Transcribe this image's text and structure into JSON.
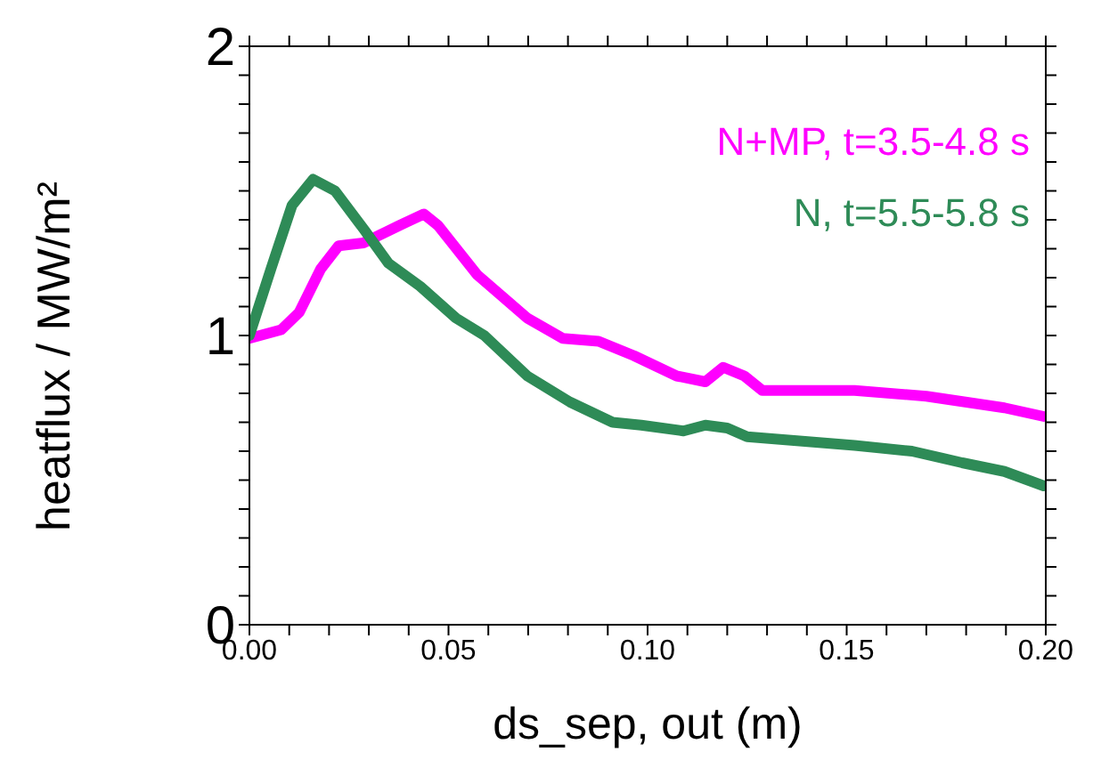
{
  "chart_data": {
    "type": "line",
    "xlabel": "ds_sep, out (m)",
    "ylabel": "heatflux / MW/m²",
    "xlim": [
      0,
      0.2
    ],
    "ylim": [
      0,
      2
    ],
    "xticks": [
      {
        "value": 0,
        "label": "0.00"
      },
      {
        "value": 0.01,
        "label": null
      },
      {
        "value": 0.02,
        "label": null
      },
      {
        "value": 0.03,
        "label": null
      },
      {
        "value": 0.04,
        "label": null
      },
      {
        "value": 0.05,
        "label": "0.05"
      },
      {
        "value": 0.06,
        "label": null
      },
      {
        "value": 0.07,
        "label": null
      },
      {
        "value": 0.08,
        "label": null
      },
      {
        "value": 0.09,
        "label": null
      },
      {
        "value": 0.1,
        "label": "0.10"
      },
      {
        "value": 0.11,
        "label": null
      },
      {
        "value": 0.12,
        "label": null
      },
      {
        "value": 0.13,
        "label": null
      },
      {
        "value": 0.14,
        "label": null
      },
      {
        "value": 0.15,
        "label": "0.15"
      },
      {
        "value": 0.16,
        "label": null
      },
      {
        "value": 0.17,
        "label": null
      },
      {
        "value": 0.18,
        "label": null
      },
      {
        "value": 0.19,
        "label": null
      },
      {
        "value": 0.2,
        "label": "0.20"
      }
    ],
    "yticks": [
      0,
      {
        "value": 0.1,
        "label": null
      },
      {
        "value": 0.2,
        "label": null
      },
      {
        "value": 0.3,
        "label": null
      },
      {
        "value": 0.4,
        "label": null
      },
      {
        "value": 0.5,
        "label": null
      },
      {
        "value": 0.6,
        "label": null
      },
      {
        "value": 0.7,
        "label": null
      },
      {
        "value": 0.8,
        "label": null
      },
      {
        "value": 0.9,
        "label": null
      },
      1,
      {
        "value": 1.1,
        "label": null
      },
      {
        "value": 1.2,
        "label": null
      },
      {
        "value": 1.3,
        "label": null
      },
      {
        "value": 1.4,
        "label": null
      },
      {
        "value": 1.5,
        "label": null
      },
      {
        "value": 1.6,
        "label": null
      },
      {
        "value": 1.7,
        "label": null
      },
      {
        "value": 1.8,
        "label": null
      },
      {
        "value": 1.9,
        "label": null
      },
      2
    ],
    "legend": "top right",
    "marker": "none",
    "line_style": "solid",
    "grid": false,
    "series": [
      {
        "name": "N+MP, t=3.5-4.8 s",
        "color": "#ff00ff",
        "x": [
          0,
          0.008,
          0.0125,
          0.0179,
          0.0224,
          0.0286,
          0.0376,
          0.0438,
          0.0474,
          0.0572,
          0.0698,
          0.0787,
          0.0877,
          0.0966,
          0.1073,
          0.1145,
          0.119,
          0.1243,
          0.1288,
          0.152,
          0.17,
          0.1896,
          0.1995
        ],
        "values": [
          0.99,
          1.02,
          1.08,
          1.23,
          1.31,
          1.32,
          1.38,
          1.42,
          1.38,
          1.21,
          1.06,
          0.99,
          0.98,
          0.93,
          0.86,
          0.84,
          0.89,
          0.86,
          0.81,
          0.81,
          0.79,
          0.75,
          0.72
        ]
      },
      {
        "name": "N, t=5.5-5.8 s",
        "color": "#2e8b57",
        "x": [
          0,
          0.0054,
          0.0107,
          0.016,
          0.0215,
          0.0286,
          0.0349,
          0.0429,
          0.0519,
          0.059,
          0.0698,
          0.0805,
          0.0912,
          0.0984,
          0.109,
          0.1145,
          0.12,
          0.125,
          0.134,
          0.152,
          0.1664,
          0.179,
          0.1896,
          0.1995
        ],
        "values": [
          1.0,
          1.23,
          1.45,
          1.54,
          1.5,
          1.37,
          1.25,
          1.17,
          1.06,
          1.0,
          0.86,
          0.77,
          0.7,
          0.69,
          0.67,
          0.69,
          0.68,
          0.65,
          0.64,
          0.62,
          0.6,
          0.56,
          0.53,
          0.48
        ]
      }
    ]
  }
}
